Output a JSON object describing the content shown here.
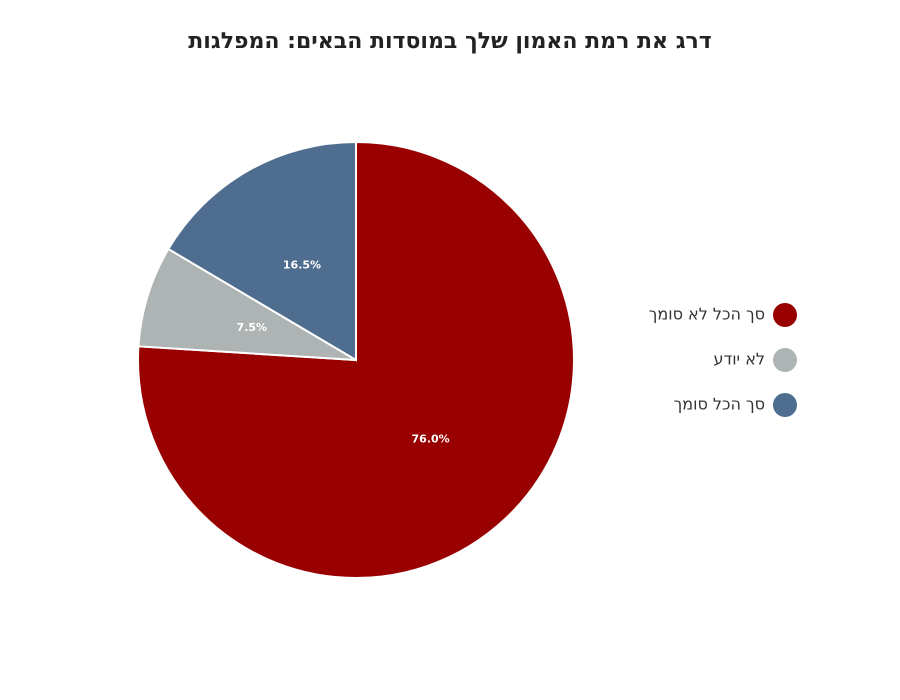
{
  "chart_data": {
    "type": "pie",
    "title": "דרג את רמת האמון שלך במוסדות הבאים: המפלגות",
    "categories": [
      "סך הכל לא סומך",
      "לא יודע",
      "סך הכל סומך"
    ],
    "values": [
      76.0,
      7.5,
      16.5
    ],
    "value_labels": [
      "76.0%",
      "7.5%",
      "16.5%"
    ],
    "colors": [
      "#990000",
      "#aeb3b3",
      "#4f6d8f"
    ],
    "legend": "right"
  }
}
